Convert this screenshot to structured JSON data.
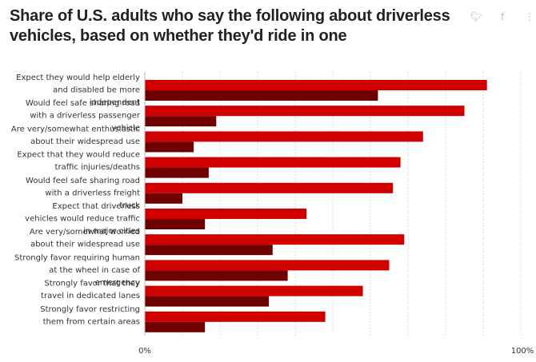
{
  "header": {
    "title": "Share of U.S. adults who say the following about driverless vehicles, based on whether they'd ride in one"
  },
  "share": {
    "twitter_icon": "twitter-icon",
    "facebook_icon": "facebook-icon",
    "more_icon": "more-icon"
  },
  "colors": {
    "series_1": "#d10000",
    "series_2": "#6e0000",
    "grid": "#dddddd"
  },
  "chart_data": {
    "type": "bar",
    "orientation": "horizontal",
    "categories": [
      [
        "Expect they would help elderly",
        "and disabled be more",
        "independent"
      ],
      [
        "Would feel safe sharing road",
        "with a driverless passenger",
        "vehicle"
      ],
      [
        "Are very/somewhat enthusiastic",
        "about their widespread use"
      ],
      [
        "Expect that they would reduce",
        "traffic injuries/deaths"
      ],
      [
        "Would feel safe sharing road",
        "with a driverless freight",
        "truck"
      ],
      [
        "Expect that driverless",
        "vehicles would reduce traffic",
        "in major cities"
      ],
      [
        "Are very/somewhat worried",
        "about their widespread use"
      ],
      [
        "Strongly favor requiring human",
        "at the wheel in case of",
        "emergency"
      ],
      [
        "Strongly favor that they",
        "travel in dedicated lanes"
      ],
      [
        "Strongly favor restricting",
        "them from certain areas"
      ]
    ],
    "series": [
      {
        "values": [
          91,
          85,
          74,
          68,
          66,
          43,
          69,
          65,
          58,
          48
        ]
      },
      {
        "values": [
          62,
          19,
          13,
          17,
          10,
          16,
          34,
          38,
          33,
          16
        ]
      }
    ],
    "xlim": [
      0,
      100
    ],
    "x_ticks": [
      "0%",
      "100%"
    ],
    "grid": true
  }
}
